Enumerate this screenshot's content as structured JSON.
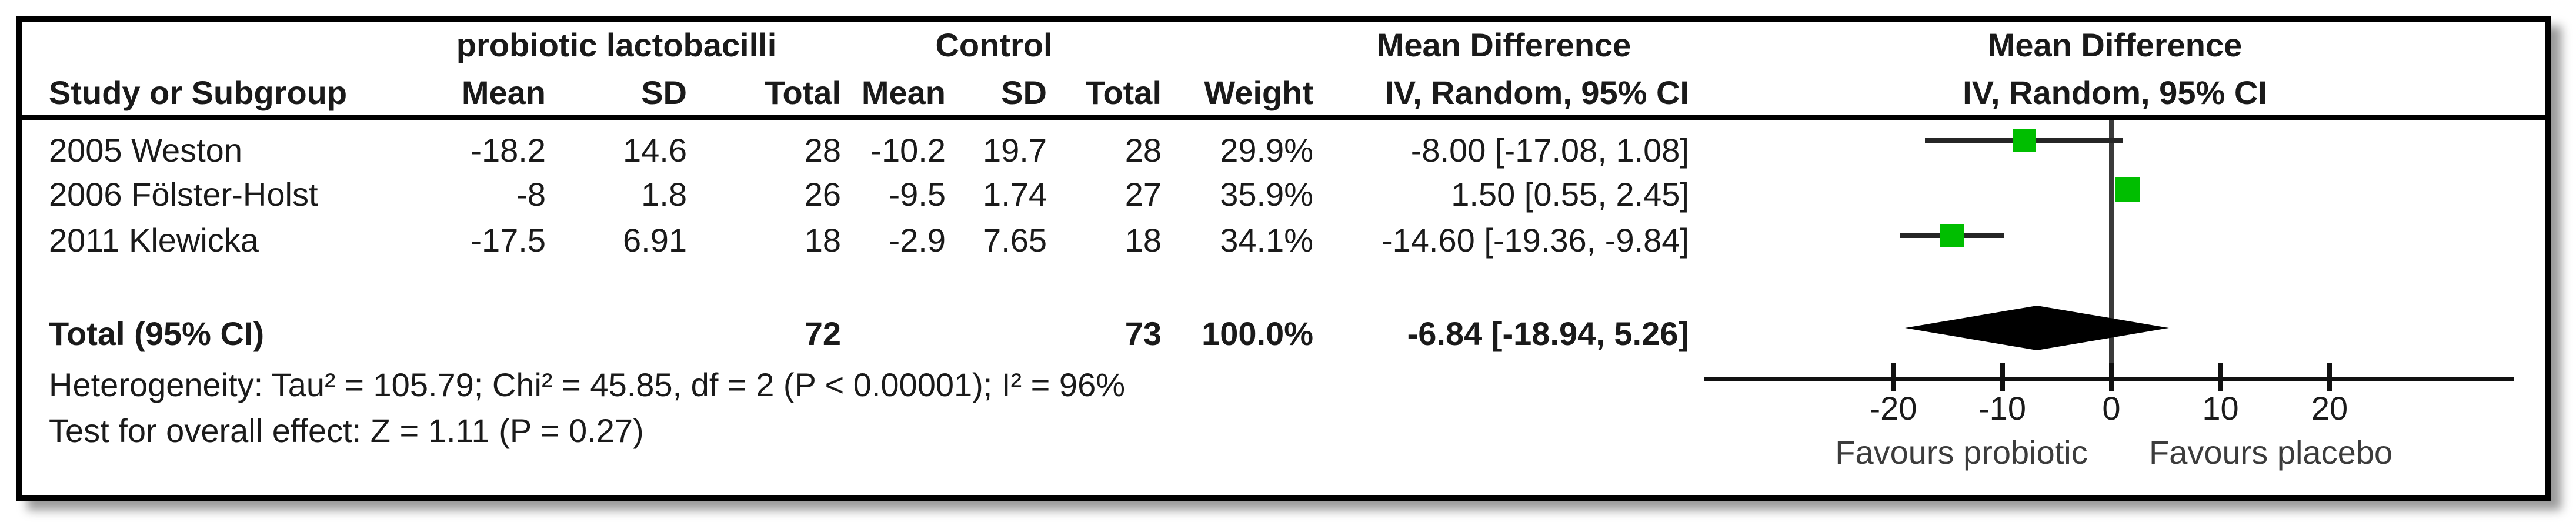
{
  "colors": {
    "marker_green": "#00be00",
    "ci_line": "#262626",
    "zero_line": "#3a3a3a",
    "axis": "#111111",
    "diamond": "#000000",
    "border": "#000000"
  },
  "table": {
    "group_headers": {
      "experimental": "probiotic lactobacilli",
      "control": "Control",
      "md_table": "Mean Difference",
      "md_plot": "Mean Difference"
    },
    "col_headers": {
      "study": "Study or Subgroup",
      "exp_mean": "Mean",
      "exp_sd": "SD",
      "exp_total": "Total",
      "ctl_mean": "Mean",
      "ctl_sd": "SD",
      "ctl_total": "Total",
      "weight": "Weight",
      "ci": "IV, Random, 95% CI",
      "ci_plot": "IV, Random, 95% CI"
    }
  },
  "chart_data": {
    "type": "scatter",
    "subtype": "forest-plot-mean-difference",
    "effect_model": "IV, Random, 95% CI",
    "studies": [
      {
        "label": "2005 Weston",
        "exp_mean": "-18.2",
        "exp_sd": "14.6",
        "exp_total": "28",
        "ctl_mean": "-10.2",
        "ctl_sd": "19.7",
        "ctl_total": "28",
        "weight": "29.9%",
        "weight_pct": 29.9,
        "ci_text": "-8.00 [-17.08, 1.08]",
        "md": -8.0,
        "ci_low": -17.08,
        "ci_high": 1.08
      },
      {
        "label": "2006 Fölster-Holst",
        "exp_mean": "-8",
        "exp_sd": "1.8",
        "exp_total": "26",
        "ctl_mean": "-9.5",
        "ctl_sd": "1.74",
        "ctl_total": "27",
        "weight": "35.9%",
        "weight_pct": 35.9,
        "ci_text": "1.50 [0.55, 2.45]",
        "md": 1.5,
        "ci_low": 0.55,
        "ci_high": 2.45
      },
      {
        "label": "2011 Klewicka",
        "exp_mean": "-17.5",
        "exp_sd": "6.91",
        "exp_total": "18",
        "ctl_mean": "-2.9",
        "ctl_sd": "7.65",
        "ctl_total": "18",
        "weight": "34.1%",
        "weight_pct": 34.1,
        "ci_text": "-14.60 [-19.36, -9.84]",
        "md": -14.6,
        "ci_low": -19.36,
        "ci_high": -9.84
      }
    ],
    "total": {
      "label": "Total (95% CI)",
      "exp_total": "72",
      "ctl_total": "73",
      "weight": "100.0%",
      "ci_text": "-6.84 [-18.94, 5.26]",
      "md": -6.84,
      "ci_low": -18.94,
      "ci_high": 5.26
    },
    "heterogeneity": "Heterogeneity: Tau² = 105.79; Chi² = 45.85, df = 2 (P < 0.00001); I² = 96%",
    "overall_effect": "Test for overall effect: Z = 1.11 (P = 0.27)",
    "axis": {
      "ticks": [
        -20,
        -10,
        0,
        10,
        20
      ],
      "tick_labels": [
        "-20",
        "-10",
        "0",
        "10",
        "20"
      ],
      "min": -20,
      "max": 20
    },
    "favours_left": "Favours probiotic",
    "favours_right": "Favours placebo"
  }
}
